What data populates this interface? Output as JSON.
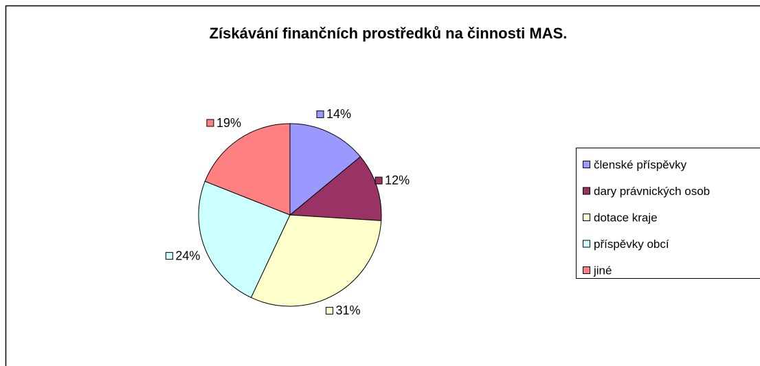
{
  "chart_data": {
    "type": "pie",
    "title": "Získávání finančních prostředků na činnosti MAS.",
    "categories": [
      "členské příspěvky",
      "dary právnických osob",
      "dotace kraje",
      "příspěvky obcí",
      "jiné"
    ],
    "values": [
      14,
      12,
      31,
      24,
      19
    ],
    "value_labels": [
      "14%",
      "12%",
      "31%",
      "24%",
      "19%"
    ],
    "colors": [
      "#9999ff",
      "#993366",
      "#ffffcc",
      "#ccffff",
      "#ff8080"
    ],
    "legend": "right"
  }
}
